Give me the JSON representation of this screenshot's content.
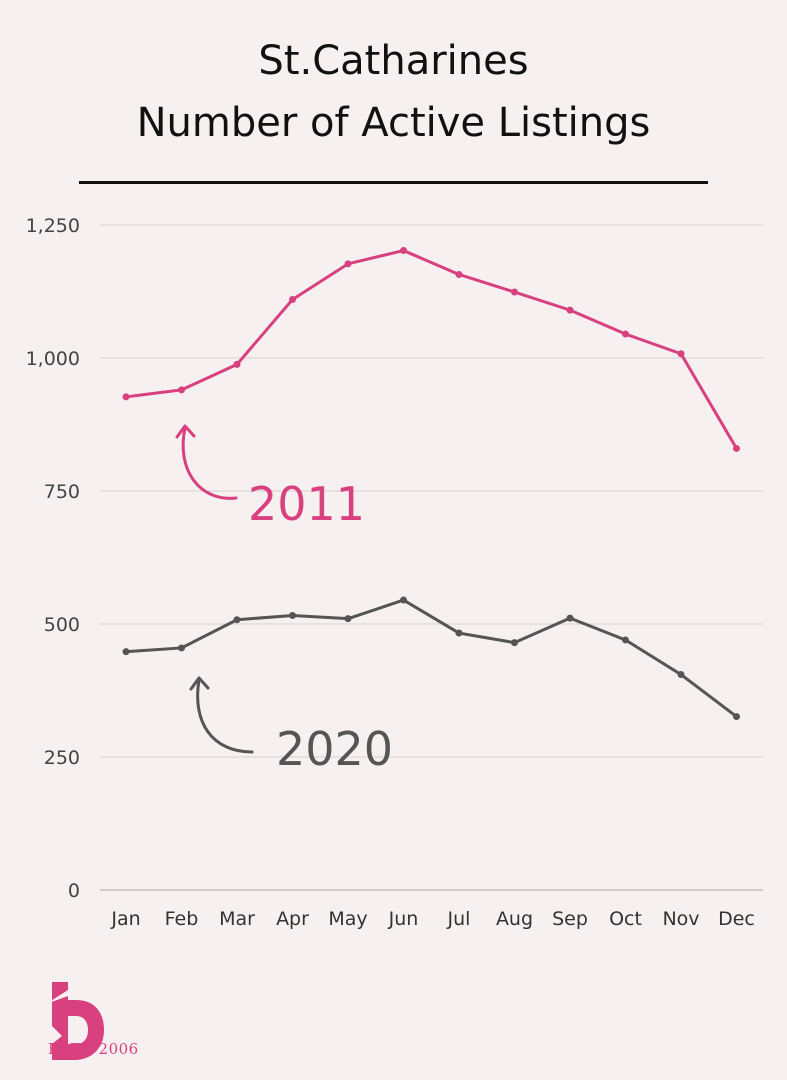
{
  "title_line1": "St.Catharines",
  "title_line2": "Number of Active Listings",
  "logo": {
    "icon": "b-brand-logo-icon",
    "est_text": "ESTD 2006",
    "color": "#d8407f"
  },
  "chart_data": {
    "type": "line",
    "categories": [
      "Jan",
      "Feb",
      "Mar",
      "Apr",
      "May",
      "Jun",
      "Jul",
      "Aug",
      "Sep",
      "Oct",
      "Nov",
      "Dec"
    ],
    "yticks": [
      "0",
      "250",
      "500",
      "750",
      "1,000",
      "1,250"
    ],
    "ylim": [
      0,
      1250
    ],
    "grid": true,
    "series": [
      {
        "name": "2011",
        "color": "#d8407f",
        "values": [
          927,
          940,
          988,
          1110,
          1177,
          1202,
          1157,
          1124,
          1090,
          1045,
          1008,
          830
        ]
      },
      {
        "name": "2020",
        "color": "#555555",
        "values": [
          448,
          455,
          508,
          516,
          510,
          545,
          483,
          465,
          511,
          470,
          405,
          326
        ]
      }
    ]
  }
}
